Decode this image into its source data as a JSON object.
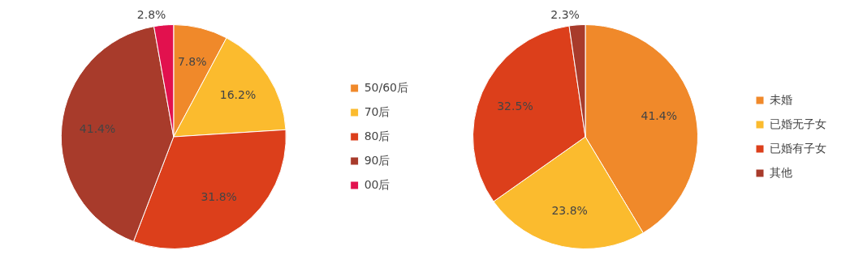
{
  "chart_data": [
    {
      "type": "pie",
      "categories": [
        "50/60后",
        "70后",
        "80后",
        "90后",
        "00后"
      ],
      "values": [
        7.8,
        16.2,
        31.8,
        41.4,
        2.8
      ],
      "value_labels": [
        "7.8%",
        "16.2%",
        "31.8%",
        "41.4%",
        "2.8%"
      ],
      "colors": [
        "#f0892a",
        "#fbbb2e",
        "#dc3f1b",
        "#a83b2b",
        "#e2114e"
      ],
      "legend": "right"
    },
    {
      "type": "pie",
      "categories": [
        "未婚",
        "已婚无子女",
        "已婚有子女",
        "其他"
      ],
      "values": [
        41.4,
        23.8,
        32.5,
        2.3
      ],
      "value_labels": [
        "41.4%",
        "23.8%",
        "32.5%",
        "2.3%"
      ],
      "colors": [
        "#f0892a",
        "#fbbb2e",
        "#dc3f1b",
        "#a83b2b"
      ],
      "legend": "right"
    }
  ]
}
